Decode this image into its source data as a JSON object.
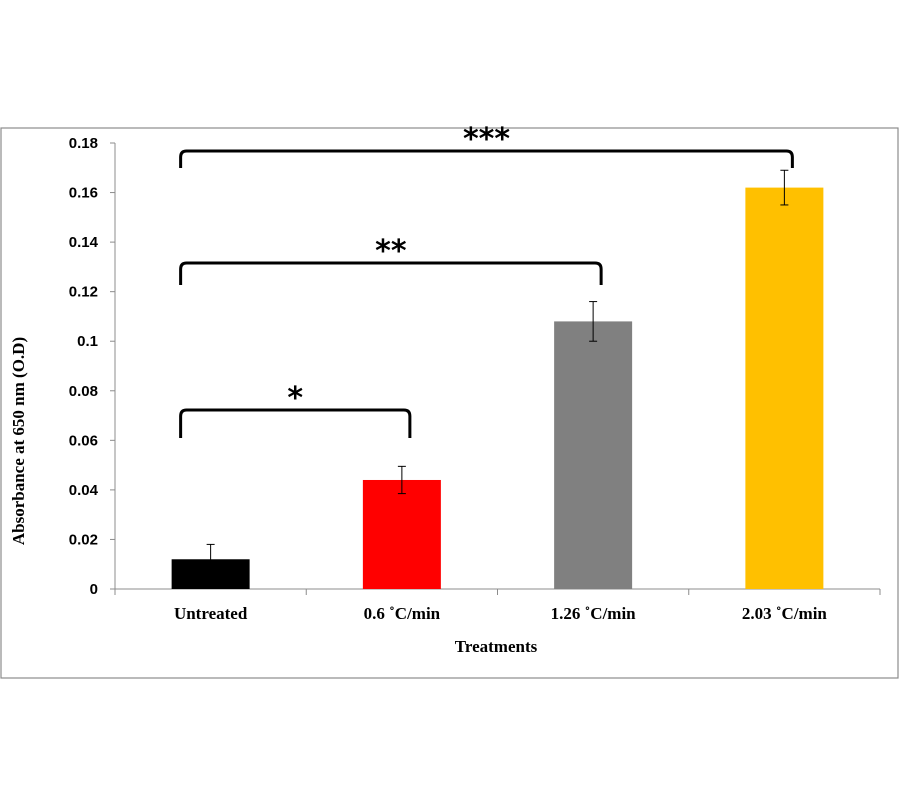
{
  "chart_data": {
    "type": "bar",
    "title": "",
    "xlabel": "Treatments",
    "ylabel": "Absorbance at 650 nm (O.D)",
    "ylim": [
      0,
      0.18
    ],
    "yticks": [
      "0",
      "0.02",
      "0.04",
      "0.06",
      "0.08",
      "0.1",
      "0.12",
      "0.14",
      "0.16",
      "0.18"
    ],
    "categories": [
      "Untreated",
      "0.6 ˚C/min",
      "1.26 ˚C/min",
      "2.03 ˚C/min"
    ],
    "values": [
      0.012,
      0.044,
      0.108,
      0.162
    ],
    "errors": [
      0.006,
      0.0055,
      0.008,
      0.007
    ],
    "colors": [
      "#000000",
      "#ff0000",
      "#808080",
      "#ffc000"
    ],
    "grid": false,
    "legend": "none",
    "significance": [
      {
        "from": 0,
        "to": 1,
        "label": "*"
      },
      {
        "from": 0,
        "to": 2,
        "label": "**"
      },
      {
        "from": 0,
        "to": 3,
        "label": "***"
      }
    ]
  }
}
